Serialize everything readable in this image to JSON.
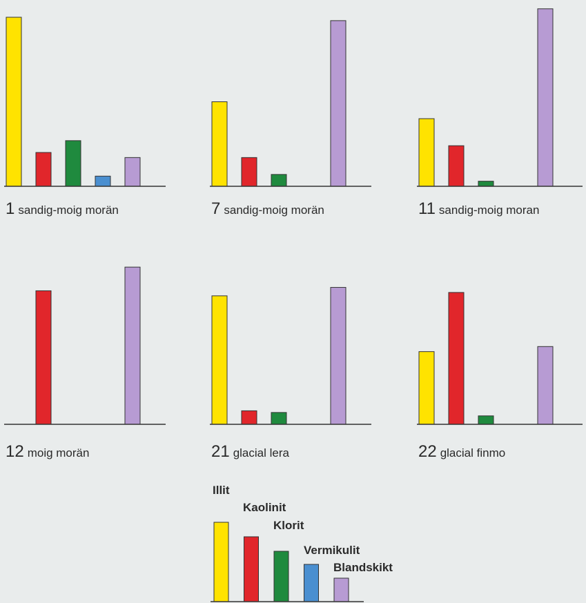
{
  "colors": {
    "illit": "#ffe300",
    "kaolinit": "#e1262b",
    "klorit": "#1f8a3e",
    "vermikulit": "#4a8fd0",
    "blandskikt": "#b79bd3",
    "axis": "#333333"
  },
  "chart_data": [
    {
      "type": "bar",
      "label_number": "1",
      "label_text": "sandig-moig morän",
      "categories": [
        "Illit",
        "Kaolinit",
        "Klorit",
        "Vermikulit",
        "Blandskikt"
      ],
      "values": [
        100,
        20,
        27,
        6,
        17
      ],
      "ylim": [
        0,
        100
      ]
    },
    {
      "type": "bar",
      "label_number": "7",
      "label_text": "sandig-moig morän",
      "categories": [
        "Illit",
        "Kaolinit",
        "Klorit",
        "Vermikulit",
        "Blandskikt"
      ],
      "values": [
        50,
        17,
        7,
        0,
        98
      ],
      "ylim": [
        0,
        100
      ]
    },
    {
      "type": "bar",
      "label_number": "11",
      "label_text": "sandig-moig moran",
      "categories": [
        "Illit",
        "Kaolinit",
        "Klorit",
        "Vermikulit",
        "Blandskikt"
      ],
      "values": [
        40,
        24,
        3,
        0,
        105
      ],
      "ylim": [
        0,
        100
      ]
    },
    {
      "type": "bar",
      "label_number": "12",
      "label_text": "moig morän",
      "categories": [
        "Illit",
        "Kaolinit",
        "Klorit",
        "Vermikulit",
        "Blandskikt"
      ],
      "values": [
        0,
        79,
        0,
        0,
        93
      ],
      "ylim": [
        0,
        100
      ]
    },
    {
      "type": "bar",
      "label_number": "21",
      "label_text": "glacial lera",
      "categories": [
        "Illit",
        "Kaolinit",
        "Klorit",
        "Vermikulit",
        "Blandskikt"
      ],
      "values": [
        76,
        8,
        7,
        0,
        81
      ],
      "ylim": [
        0,
        100
      ]
    },
    {
      "type": "bar",
      "label_number": "22",
      "label_text": "glacial finmo",
      "categories": [
        "Illit",
        "Kaolinit",
        "Klorit",
        "Vermikulit",
        "Blandskikt"
      ],
      "values": [
        43,
        78,
        5,
        0,
        46
      ],
      "ylim": [
        0,
        100
      ]
    }
  ],
  "legend": {
    "items": [
      {
        "key": "illit",
        "label": "Illit"
      },
      {
        "key": "kaolinit",
        "label": "Kaolinit"
      },
      {
        "key": "klorit",
        "label": "Klorit"
      },
      {
        "key": "vermikulit",
        "label": "Vermikulit"
      },
      {
        "key": "blandskikt",
        "label": "Blandskikt"
      }
    ]
  }
}
